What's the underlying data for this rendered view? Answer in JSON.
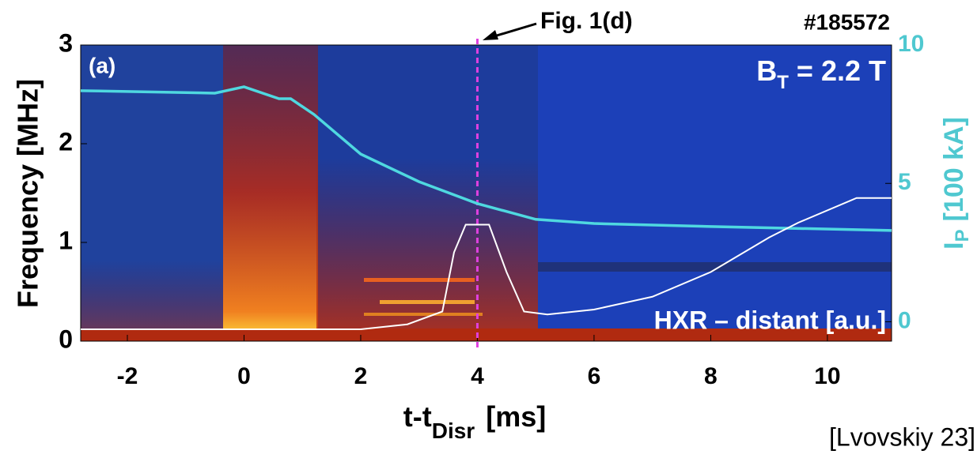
{
  "chart_data": {
    "type": "line",
    "x_label": {
      "main": "t-t",
      "sub": "Disr",
      "unit": "[ms]"
    },
    "y_label": "Frequency [MHz]",
    "y2_label": {
      "main": "I",
      "sub": "P",
      "unit": "[100 kA]"
    },
    "y2_color": "#4fc8d0",
    "xlim": [
      -2.8,
      11.1
    ],
    "xticks": [
      -2,
      0,
      2,
      4,
      6,
      8,
      10
    ],
    "ylim": [
      0,
      3
    ],
    "yticks": [
      0,
      1,
      2,
      3
    ],
    "y2lim": [
      -0.7,
      10
    ],
    "y2ticks": [
      0,
      5,
      10
    ],
    "series": [
      {
        "name": "Ip",
        "color": "#4fd8e0",
        "axis": "y2",
        "x": [
          -2.8,
          -0.5,
          0,
          0.6,
          0.8,
          1.2,
          2,
          3,
          4,
          5,
          6,
          8,
          11.1
        ],
        "values": [
          8.35,
          8.26,
          8.49,
          8.06,
          8.06,
          7.49,
          6.06,
          5.06,
          4.27,
          3.7,
          3.55,
          3.44,
          3.3
        ]
      },
      {
        "name": "HXR – distant [a.u.]",
        "color": "#ffffff",
        "axis": "y",
        "x": [
          -2.8,
          2,
          2.8,
          3.4,
          3.6,
          3.8,
          4.2,
          4.5,
          4.8,
          5.2,
          6,
          7,
          8,
          9,
          9.5,
          10.5,
          11.1
        ],
        "values": [
          0.12,
          0.12,
          0.17,
          0.3,
          0.9,
          1.18,
          1.18,
          0.7,
          0.3,
          0.27,
          0.32,
          0.45,
          0.7,
          1.05,
          1.2,
          1.45,
          1.45
        ]
      }
    ],
    "vline": {
      "x": 4,
      "color": "#e040e0"
    },
    "annotations": {
      "panel": "(a)",
      "shot": "#185572",
      "arrow_label": "Fig. 1(d)",
      "field": {
        "main": "B",
        "sub": "T",
        "rest": " = 2.2 T"
      }
    },
    "citation": "[Lvovskiy 23]"
  }
}
